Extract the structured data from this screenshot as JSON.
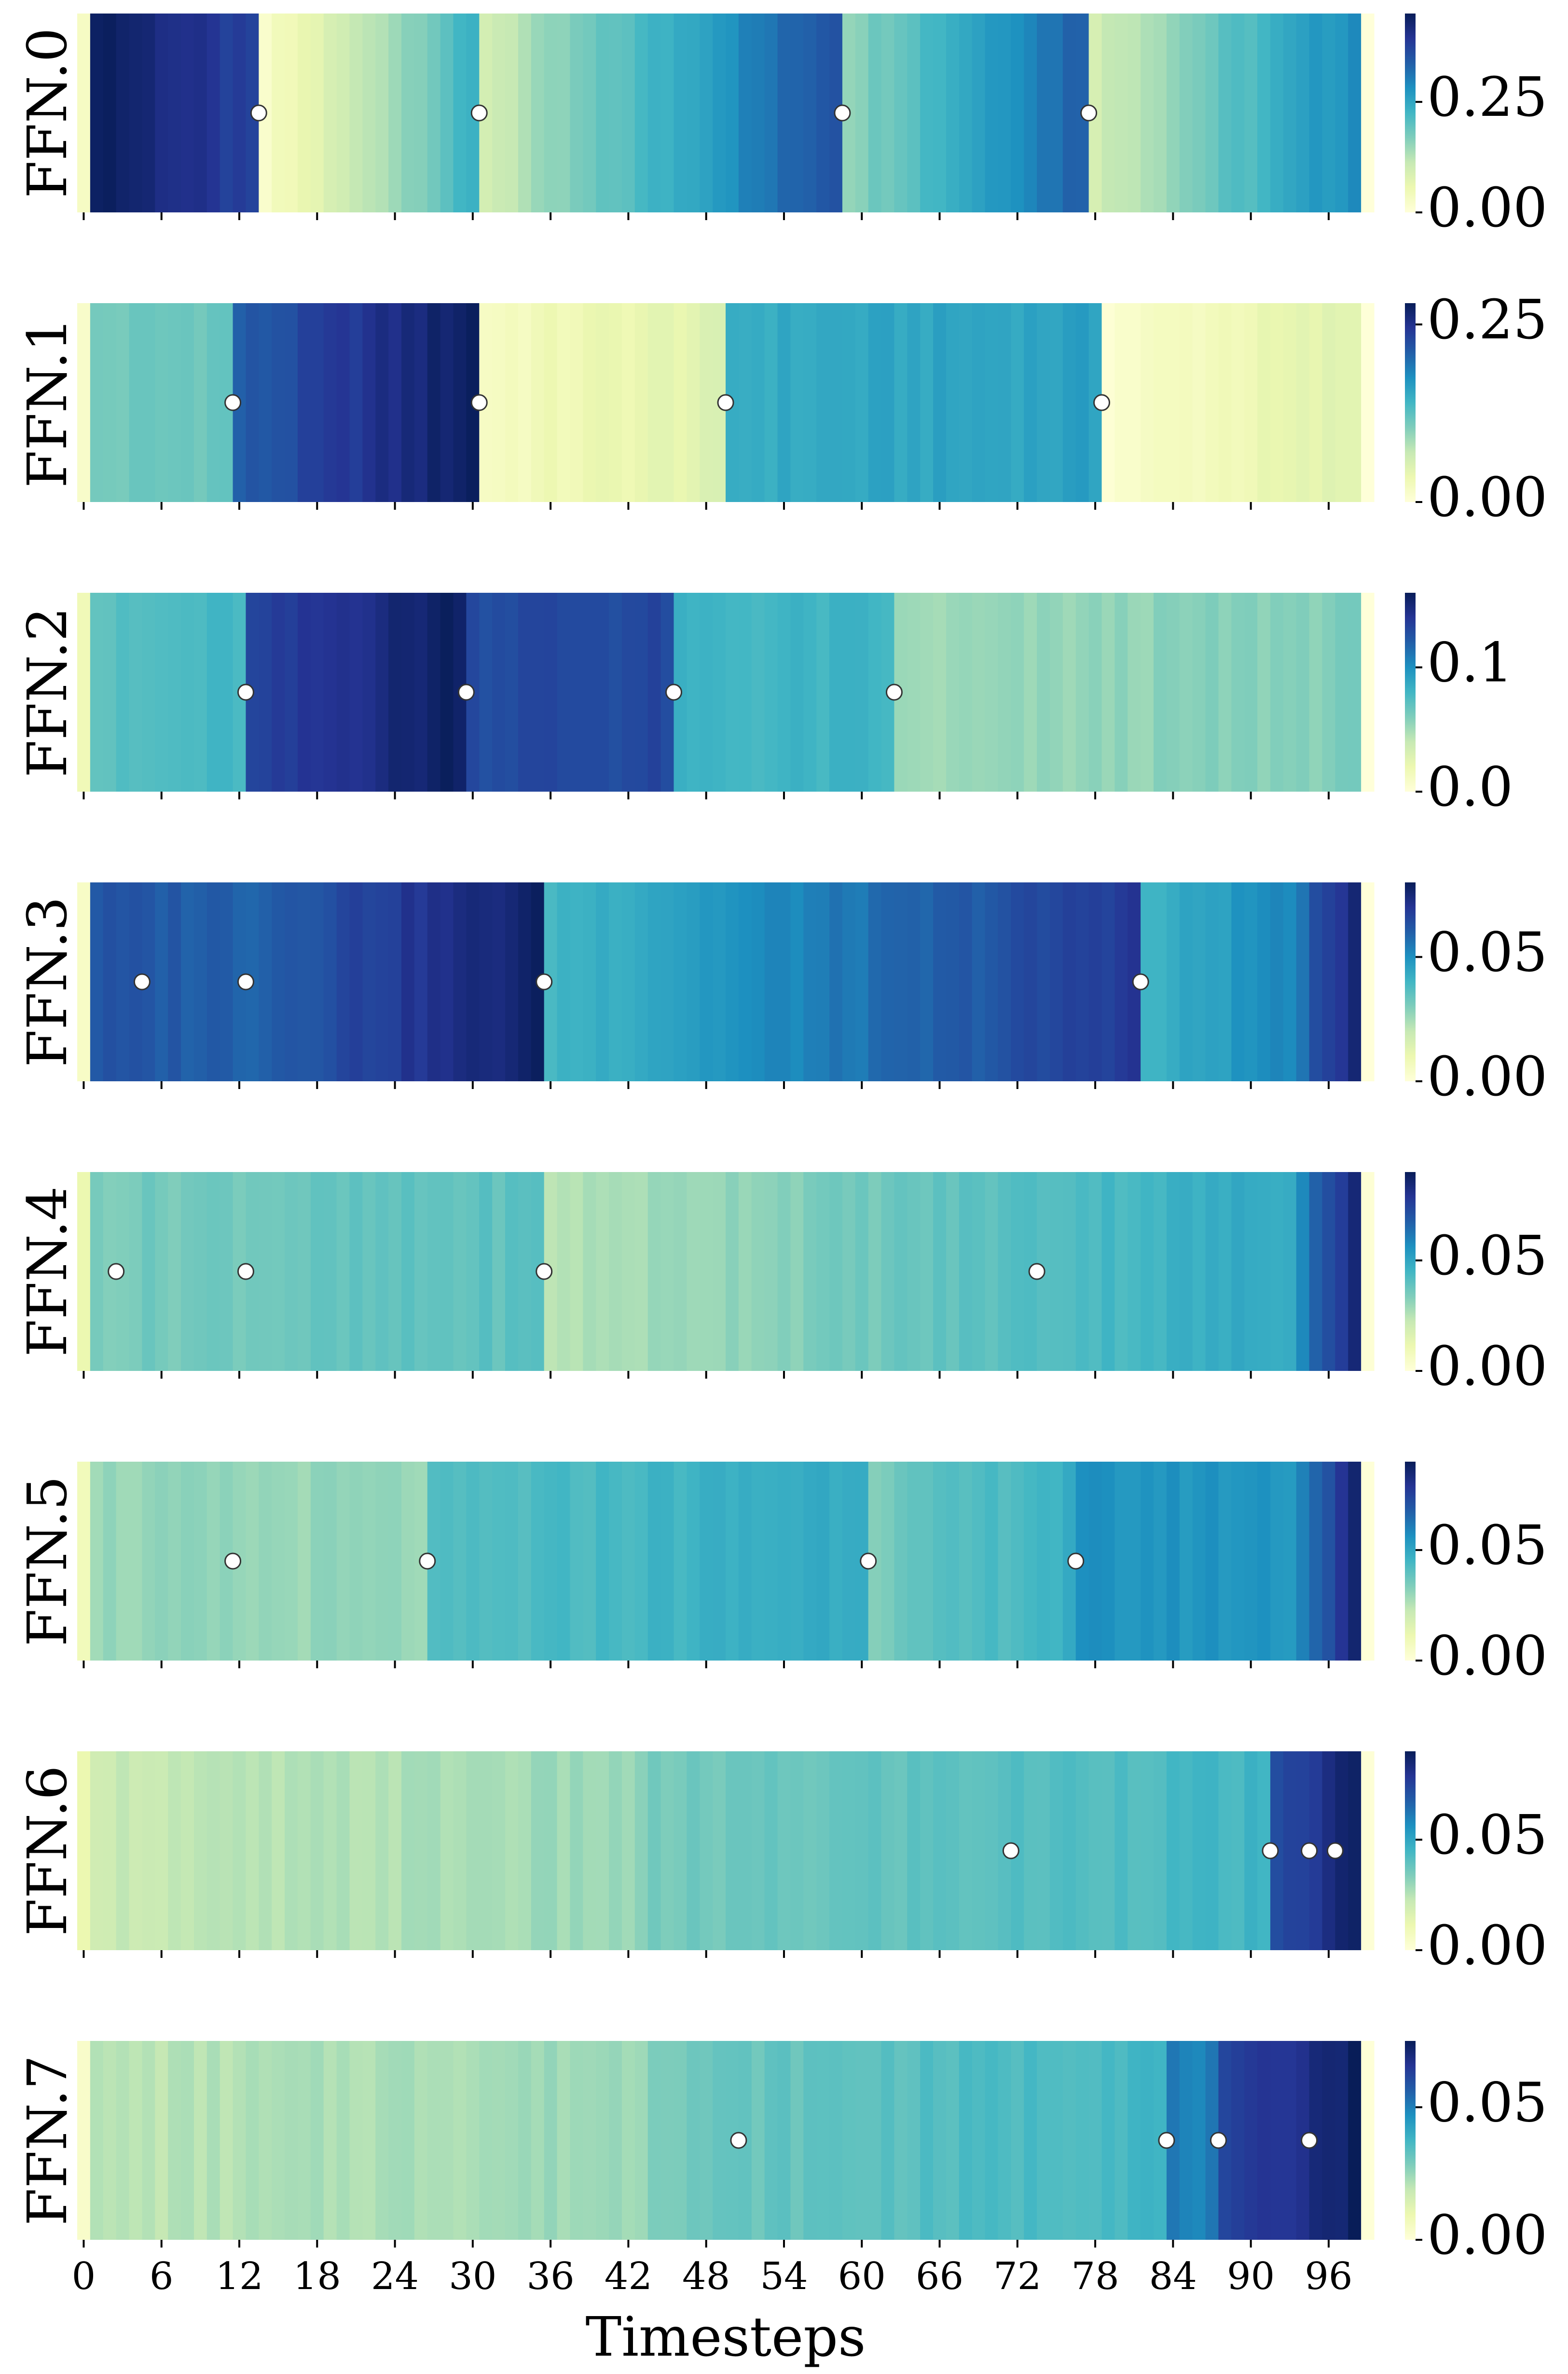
{
  "chart_data": {
    "type": "heatmap",
    "xlabel": "Timesteps",
    "x_range": [
      0,
      99
    ],
    "x_ticks": [
      0,
      6,
      12,
      18,
      24,
      30,
      36,
      42,
      48,
      54,
      60,
      66,
      72,
      78,
      84,
      90,
      96
    ],
    "x_tick_labels": [
      "0",
      "6",
      "12",
      "18",
      "24",
      "30",
      "36",
      "42",
      "48",
      "54",
      "60",
      "66",
      "72",
      "78",
      "84",
      "90",
      "96"
    ],
    "colormap": "YlGnBu",
    "marker_style": "white-circle",
    "rows": [
      {
        "label": "FFN.0",
        "vmax": 0.45,
        "cbar_ticks": [
          0,
          0.25
        ],
        "cbar_tick_labels": [
          "0.00",
          "0.25"
        ],
        "markers": [
          14,
          31,
          59,
          78
        ],
        "segments": [
          {
            "start": 0,
            "end": 1,
            "from": 0.02,
            "to": 0.02
          },
          {
            "start": 1,
            "end": 14,
            "from": 0.45,
            "to": 0.36
          },
          {
            "start": 14,
            "end": 31,
            "from": 0.02,
            "to": 0.24
          },
          {
            "start": 31,
            "end": 59,
            "from": 0.1,
            "to": 0.37
          },
          {
            "start": 59,
            "end": 78,
            "from": 0.16,
            "to": 0.35
          },
          {
            "start": 78,
            "end": 99,
            "from": 0.1,
            "to": 0.3
          }
        ]
      },
      {
        "label": "FFN.1",
        "vmax": 0.28,
        "cbar_ticks": [
          0,
          0.25
        ],
        "cbar_tick_labels": [
          "0.00",
          "0.25"
        ],
        "markers": [
          12,
          31,
          50,
          79
        ],
        "segments": [
          {
            "start": 0,
            "end": 1,
            "from": 0.01,
            "to": 0.01
          },
          {
            "start": 1,
            "end": 12,
            "from": 0.11,
            "to": 0.12
          },
          {
            "start": 12,
            "end": 31,
            "from": 0.21,
            "to": 0.28
          },
          {
            "start": 31,
            "end": 50,
            "from": 0.02,
            "to": 0.05
          },
          {
            "start": 50,
            "end": 79,
            "from": 0.15,
            "to": 0.16
          },
          {
            "start": 79,
            "end": 99,
            "from": 0.01,
            "to": 0.05
          }
        ]
      },
      {
        "label": "FFN.2",
        "vmax": 0.16,
        "cbar_ticks": [
          0,
          0.1
        ],
        "cbar_tick_labels": [
          "0.0",
          "0.1"
        ],
        "markers": [
          13,
          30,
          46,
          63
        ],
        "segments": [
          {
            "start": 0,
            "end": 1,
            "from": 0.02,
            "to": 0.02
          },
          {
            "start": 1,
            "end": 13,
            "from": 0.07,
            "to": 0.08
          },
          {
            "start": 13,
            "end": 30,
            "from": 0.13,
            "to": 0.16
          },
          {
            "start": 30,
            "end": 46,
            "from": 0.13,
            "to": 0.13
          },
          {
            "start": 46,
            "end": 63,
            "from": 0.08,
            "to": 0.08
          },
          {
            "start": 63,
            "end": 98,
            "from": 0.05,
            "to": 0.06
          },
          {
            "start": 98,
            "end": 99,
            "from": 0.06,
            "to": 0.06
          }
        ]
      },
      {
        "label": "FFN.3",
        "vmax": 0.08,
        "cbar_ticks": [
          0,
          0.05
        ],
        "cbar_tick_labels": [
          "0.00",
          "0.05"
        ],
        "markers": [
          5,
          13,
          36,
          82
        ],
        "segments": [
          {
            "start": 0,
            "end": 1,
            "from": 0.005,
            "to": 0.005
          },
          {
            "start": 1,
            "end": 13,
            "from": 0.062,
            "to": 0.06
          },
          {
            "start": 13,
            "end": 36,
            "from": 0.06,
            "to": 0.078
          },
          {
            "start": 36,
            "end": 82,
            "from": 0.04,
            "to": 0.07
          },
          {
            "start": 82,
            "end": 95,
            "from": 0.04,
            "to": 0.055
          },
          {
            "start": 95,
            "end": 99,
            "from": 0.062,
            "to": 0.08
          }
        ]
      },
      {
        "label": "FFN.4",
        "vmax": 0.09,
        "cbar_ticks": [
          0,
          0.05
        ],
        "cbar_tick_labels": [
          "0.00",
          "0.05"
        ],
        "markers": [
          3,
          13,
          36,
          74
        ],
        "segments": [
          {
            "start": 0,
            "end": 1,
            "from": 0.01,
            "to": 0.01
          },
          {
            "start": 1,
            "end": 36,
            "from": 0.035,
            "to": 0.04
          },
          {
            "start": 36,
            "end": 74,
            "from": 0.025,
            "to": 0.042
          },
          {
            "start": 74,
            "end": 94,
            "from": 0.042,
            "to": 0.05
          },
          {
            "start": 94,
            "end": 99,
            "from": 0.06,
            "to": 0.09
          }
        ]
      },
      {
        "label": "FFN.5",
        "vmax": 0.09,
        "cbar_ticks": [
          0,
          0.05
        ],
        "cbar_tick_labels": [
          "0.00",
          "0.05"
        ],
        "markers": [
          12,
          27,
          61,
          77
        ],
        "segments": [
          {
            "start": 0,
            "end": 1,
            "from": 0.01,
            "to": 0.01
          },
          {
            "start": 1,
            "end": 27,
            "from": 0.03,
            "to": 0.03
          },
          {
            "start": 27,
            "end": 61,
            "from": 0.04,
            "to": 0.05
          },
          {
            "start": 61,
            "end": 77,
            "from": 0.035,
            "to": 0.048
          },
          {
            "start": 77,
            "end": 94,
            "from": 0.055,
            "to": 0.055
          },
          {
            "start": 94,
            "end": 99,
            "from": 0.06,
            "to": 0.09
          }
        ]
      },
      {
        "label": "FFN.6",
        "vmax": 0.09,
        "cbar_ticks": [
          0,
          0.05
        ],
        "cbar_tick_labels": [
          "0.00",
          "0.05"
        ],
        "markers": [
          72,
          92,
          95,
          97
        ],
        "segments": [
          {
            "start": 0,
            "end": 1,
            "from": 0.01,
            "to": 0.01
          },
          {
            "start": 1,
            "end": 44,
            "from": 0.022,
            "to": 0.03
          },
          {
            "start": 44,
            "end": 92,
            "from": 0.035,
            "to": 0.045
          },
          {
            "start": 92,
            "end": 99,
            "from": 0.07,
            "to": 0.09
          }
        ]
      },
      {
        "label": "FFN.7",
        "vmax": 0.075,
        "cbar_ticks": [
          0,
          0.05
        ],
        "cbar_tick_labels": [
          "0.00",
          "0.05"
        ],
        "markers": [
          51,
          84,
          88,
          95
        ],
        "segments": [
          {
            "start": 0,
            "end": 1,
            "from": 0.005,
            "to": 0.005
          },
          {
            "start": 1,
            "end": 44,
            "from": 0.02,
            "to": 0.025
          },
          {
            "start": 44,
            "end": 84,
            "from": 0.03,
            "to": 0.038
          },
          {
            "start": 84,
            "end": 88,
            "from": 0.05,
            "to": 0.05
          },
          {
            "start": 88,
            "end": 99,
            "from": 0.06,
            "to": 0.075
          }
        ]
      }
    ]
  }
}
